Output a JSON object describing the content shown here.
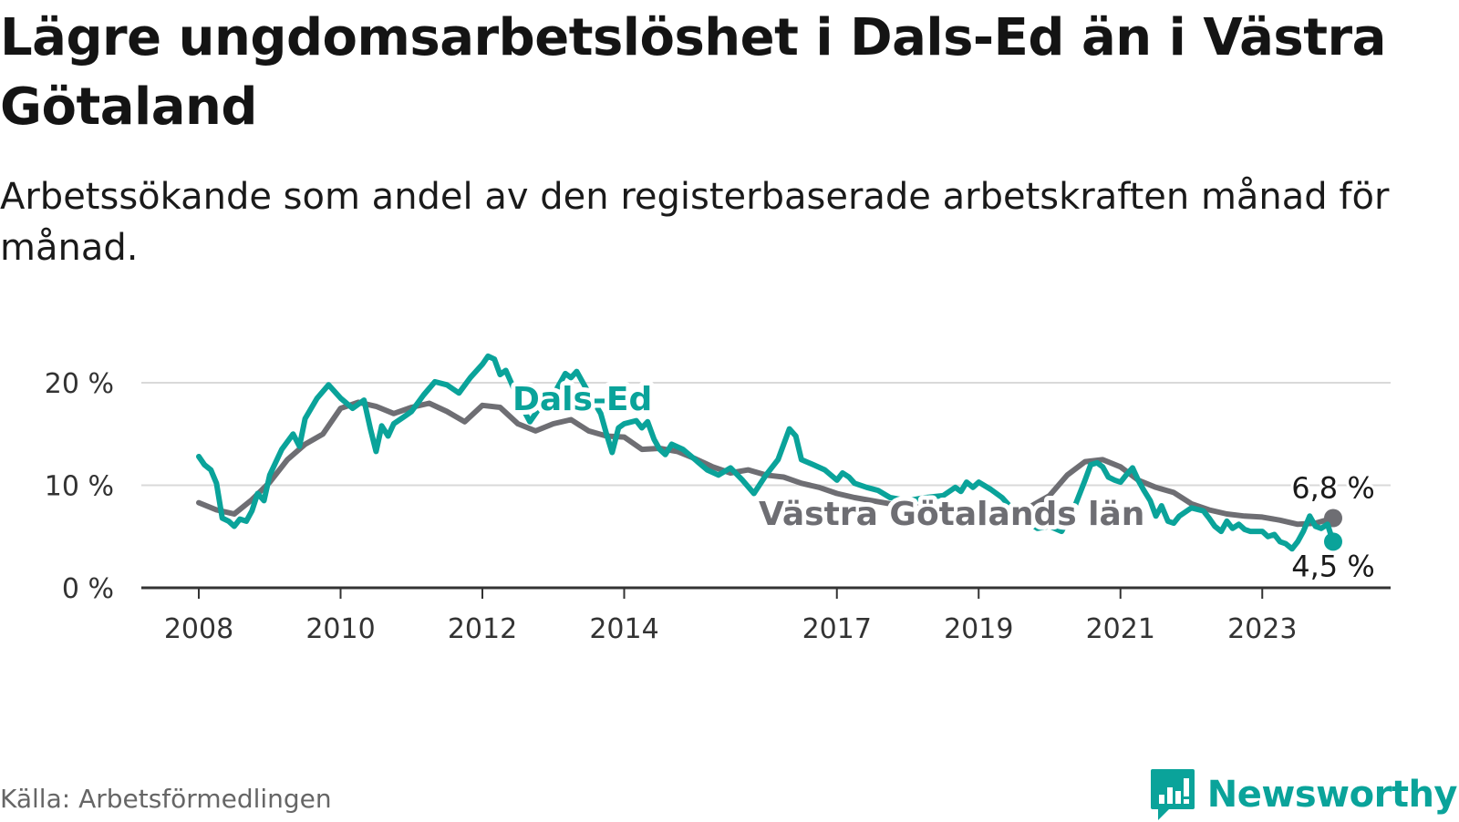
{
  "title": "Lägre ungdomsarbetslöshet i Dals-Ed än i Västra Götaland",
  "subtitle": "Arbetssökande som andel av den registerbaserade arbetskraften månad för månad.",
  "source": "Källa: Arbetsförmedlingen",
  "brand": {
    "name": "Newsworthy",
    "icon": "bar-chart-speech-bubble-icon"
  },
  "colors": {
    "dals_ed": "#0aa39a",
    "vastra_gotaland": "#6e6e73",
    "grid": "#d9d9d9",
    "axis": "#333333",
    "brand": "#0aa39a"
  },
  "chart_data": {
    "type": "line",
    "title": "Lägre ungdomsarbetslöshet i Dals-Ed än i Västra Götaland",
    "subtitle": "Arbetssökande som andel av den registerbaserade arbetskraften månad för månad.",
    "xlabel": "",
    "ylabel": "",
    "ylim": [
      0,
      20
    ],
    "xlim": [
      2008.0,
      2024.0
    ],
    "grid": true,
    "y_ticks": [
      0,
      10,
      20
    ],
    "y_tick_labels": [
      "0 %",
      "10 %",
      "20 %"
    ],
    "x_ticks": [
      2008,
      2010,
      2012,
      2014,
      2017,
      2019,
      2021,
      2023
    ],
    "x_tick_labels": [
      "2008",
      "2010",
      "2012",
      "2014",
      "2017",
      "2019",
      "2021",
      "2023"
    ],
    "series": [
      {
        "name": "Västra Götalands län",
        "label": "Västra Götalands län",
        "end_label": "6,8 %",
        "points": [
          [
            2008.0,
            8.3
          ],
          [
            2008.25,
            7.6
          ],
          [
            2008.5,
            7.2
          ],
          [
            2008.75,
            8.6
          ],
          [
            2009.0,
            10.3
          ],
          [
            2009.25,
            12.5
          ],
          [
            2009.5,
            14.0
          ],
          [
            2009.75,
            15.0
          ],
          [
            2010.0,
            17.5
          ],
          [
            2010.25,
            18.1
          ],
          [
            2010.5,
            17.7
          ],
          [
            2010.75,
            17.0
          ],
          [
            2011.0,
            17.6
          ],
          [
            2011.25,
            18.0
          ],
          [
            2011.5,
            17.2
          ],
          [
            2011.75,
            16.2
          ],
          [
            2012.0,
            17.8
          ],
          [
            2012.25,
            17.6
          ],
          [
            2012.5,
            16.0
          ],
          [
            2012.75,
            15.3
          ],
          [
            2013.0,
            16.0
          ],
          [
            2013.25,
            16.4
          ],
          [
            2013.5,
            15.3
          ],
          [
            2013.75,
            14.8
          ],
          [
            2014.0,
            14.7
          ],
          [
            2014.25,
            13.5
          ],
          [
            2014.5,
            13.6
          ],
          [
            2014.75,
            13.3
          ],
          [
            2015.0,
            12.6
          ],
          [
            2015.25,
            11.8
          ],
          [
            2015.5,
            11.2
          ],
          [
            2015.75,
            11.5
          ],
          [
            2016.0,
            11.0
          ],
          [
            2016.25,
            10.8
          ],
          [
            2016.5,
            10.2
          ],
          [
            2016.75,
            9.8
          ],
          [
            2017.0,
            9.2
          ],
          [
            2017.25,
            8.8
          ],
          [
            2017.5,
            8.5
          ],
          [
            2017.75,
            8.2
          ],
          [
            2018.0,
            8.0
          ],
          [
            2018.25,
            7.8
          ],
          [
            2018.5,
            7.5
          ],
          [
            2018.75,
            7.2
          ],
          [
            2019.0,
            6.9
          ],
          [
            2019.25,
            7.0
          ],
          [
            2019.5,
            7.3
          ],
          [
            2019.75,
            8.0
          ],
          [
            2020.0,
            9.0
          ],
          [
            2020.25,
            11.0
          ],
          [
            2020.5,
            12.3
          ],
          [
            2020.75,
            12.5
          ],
          [
            2021.0,
            11.8
          ],
          [
            2021.25,
            10.5
          ],
          [
            2021.5,
            9.8
          ],
          [
            2021.75,
            9.3
          ],
          [
            2022.0,
            8.2
          ],
          [
            2022.25,
            7.6
          ],
          [
            2022.5,
            7.2
          ],
          [
            2022.75,
            7.0
          ],
          [
            2023.0,
            6.9
          ],
          [
            2023.25,
            6.6
          ],
          [
            2023.5,
            6.2
          ],
          [
            2023.75,
            6.3
          ],
          [
            2024.0,
            6.8
          ]
        ]
      },
      {
        "name": "Dals-Ed",
        "label": "Dals-Ed",
        "end_label": "4,5 %",
        "points": [
          [
            2008.0,
            12.8
          ],
          [
            2008.08,
            12.0
          ],
          [
            2008.17,
            11.5
          ],
          [
            2008.25,
            10.2
          ],
          [
            2008.33,
            6.8
          ],
          [
            2008.42,
            6.5
          ],
          [
            2008.5,
            6.0
          ],
          [
            2008.58,
            6.7
          ],
          [
            2008.67,
            6.5
          ],
          [
            2008.75,
            7.5
          ],
          [
            2008.83,
            9.2
          ],
          [
            2008.92,
            8.5
          ],
          [
            2009.0,
            11.0
          ],
          [
            2009.17,
            13.5
          ],
          [
            2009.33,
            15.0
          ],
          [
            2009.42,
            13.8
          ],
          [
            2009.5,
            16.5
          ],
          [
            2009.67,
            18.5
          ],
          [
            2009.83,
            19.8
          ],
          [
            2010.0,
            18.5
          ],
          [
            2010.17,
            17.5
          ],
          [
            2010.33,
            18.3
          ],
          [
            2010.42,
            15.5
          ],
          [
            2010.5,
            13.3
          ],
          [
            2010.58,
            15.8
          ],
          [
            2010.67,
            14.8
          ],
          [
            2010.75,
            16.0
          ],
          [
            2010.92,
            16.8
          ],
          [
            2011.0,
            17.2
          ],
          [
            2011.17,
            18.8
          ],
          [
            2011.33,
            20.1
          ],
          [
            2011.5,
            19.8
          ],
          [
            2011.67,
            19.0
          ],
          [
            2011.83,
            20.5
          ],
          [
            2012.0,
            21.8
          ],
          [
            2012.08,
            22.6
          ],
          [
            2012.17,
            22.3
          ],
          [
            2012.25,
            20.8
          ],
          [
            2012.33,
            21.2
          ],
          [
            2012.42,
            19.8
          ],
          [
            2012.5,
            18.4
          ],
          [
            2012.67,
            16.2
          ],
          [
            2012.83,
            17.8
          ],
          [
            2013.0,
            18.8
          ],
          [
            2013.17,
            20.9
          ],
          [
            2013.25,
            20.5
          ],
          [
            2013.33,
            21.1
          ],
          [
            2013.5,
            19.0
          ],
          [
            2013.67,
            17.0
          ],
          [
            2013.75,
            15.0
          ],
          [
            2013.83,
            13.2
          ],
          [
            2013.92,
            15.6
          ],
          [
            2014.0,
            16.0
          ],
          [
            2014.17,
            16.3
          ],
          [
            2014.25,
            15.6
          ],
          [
            2014.33,
            16.2
          ],
          [
            2014.42,
            14.5
          ],
          [
            2014.5,
            13.5
          ],
          [
            2014.58,
            13.0
          ],
          [
            2014.67,
            14.0
          ],
          [
            2014.83,
            13.5
          ],
          [
            2015.0,
            12.5
          ],
          [
            2015.17,
            11.5
          ],
          [
            2015.33,
            11.0
          ],
          [
            2015.5,
            11.7
          ],
          [
            2015.67,
            10.5
          ],
          [
            2015.83,
            9.2
          ],
          [
            2016.0,
            11.0
          ],
          [
            2016.17,
            12.5
          ],
          [
            2016.33,
            15.5
          ],
          [
            2016.42,
            14.8
          ],
          [
            2016.5,
            12.5
          ],
          [
            2016.67,
            12.0
          ],
          [
            2016.83,
            11.5
          ],
          [
            2017.0,
            10.5
          ],
          [
            2017.08,
            11.2
          ],
          [
            2017.17,
            10.8
          ],
          [
            2017.25,
            10.2
          ],
          [
            2017.42,
            9.8
          ],
          [
            2017.58,
            9.5
          ],
          [
            2017.75,
            8.8
          ],
          [
            2018.0,
            8.5
          ],
          [
            2018.25,
            8.8
          ],
          [
            2018.5,
            9.0
          ],
          [
            2018.67,
            9.8
          ],
          [
            2018.75,
            9.4
          ],
          [
            2018.83,
            10.3
          ],
          [
            2018.92,
            9.8
          ],
          [
            2019.0,
            10.3
          ],
          [
            2019.17,
            9.6
          ],
          [
            2019.33,
            8.8
          ],
          [
            2019.5,
            7.5
          ],
          [
            2019.67,
            6.5
          ],
          [
            2019.83,
            5.8
          ],
          [
            2020.0,
            6.0
          ],
          [
            2020.17,
            5.5
          ],
          [
            2020.33,
            7.5
          ],
          [
            2020.5,
            10.5
          ],
          [
            2020.58,
            12.0
          ],
          [
            2020.67,
            12.2
          ],
          [
            2020.75,
            11.8
          ],
          [
            2020.83,
            10.8
          ],
          [
            2020.92,
            10.5
          ],
          [
            2021.0,
            10.3
          ],
          [
            2021.08,
            11.0
          ],
          [
            2021.17,
            11.7
          ],
          [
            2021.25,
            10.5
          ],
          [
            2021.33,
            9.5
          ],
          [
            2021.42,
            8.5
          ],
          [
            2021.5,
            7.0
          ],
          [
            2021.58,
            8.0
          ],
          [
            2021.67,
            6.5
          ],
          [
            2021.75,
            6.3
          ],
          [
            2021.83,
            7.0
          ],
          [
            2022.0,
            7.8
          ],
          [
            2022.17,
            7.5
          ],
          [
            2022.25,
            6.8
          ],
          [
            2022.33,
            6.0
          ],
          [
            2022.42,
            5.5
          ],
          [
            2022.5,
            6.5
          ],
          [
            2022.58,
            5.8
          ],
          [
            2022.67,
            6.2
          ],
          [
            2022.75,
            5.7
          ],
          [
            2022.83,
            5.5
          ],
          [
            2023.0,
            5.5
          ],
          [
            2023.08,
            5.0
          ],
          [
            2023.17,
            5.2
          ],
          [
            2023.25,
            4.5
          ],
          [
            2023.33,
            4.3
          ],
          [
            2023.42,
            3.8
          ],
          [
            2023.5,
            4.5
          ],
          [
            2023.58,
            5.5
          ],
          [
            2023.67,
            7.0
          ],
          [
            2023.75,
            6.0
          ],
          [
            2023.83,
            5.8
          ],
          [
            2023.92,
            6.2
          ],
          [
            2024.0,
            4.5
          ]
        ]
      }
    ]
  }
}
